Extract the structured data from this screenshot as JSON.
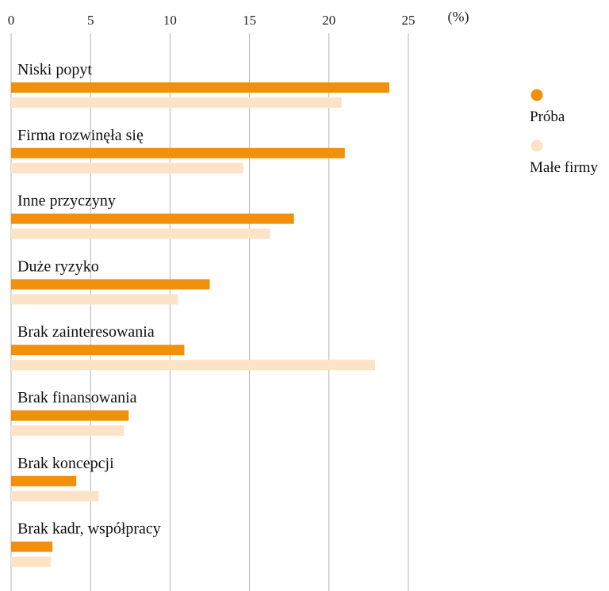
{
  "chart_data": {
    "type": "bar",
    "orientation": "horizontal",
    "unit_label": "(%)",
    "xlim": [
      0,
      25
    ],
    "x_ticks": [
      "0",
      "5",
      "10",
      "15",
      "20",
      "25"
    ],
    "grid": "vertical",
    "legend_position": "right",
    "categories": [
      "Niski popyt",
      "Firma rozwinęła się",
      "Inne przyczyny",
      "Duże ryzyko",
      "Brak zainteresowania",
      "Brak finansowania",
      "Brak koncepcji",
      "Brak kadr, współpracy"
    ],
    "series": [
      {
        "name": "Próba",
        "color": "#f0900c",
        "values": [
          23.8,
          21.0,
          17.8,
          12.5,
          10.9,
          7.4,
          4.1,
          2.6
        ]
      },
      {
        "name": "Małe firmy",
        "color": "#fde3c6",
        "values": [
          20.8,
          14.6,
          16.3,
          10.5,
          22.9,
          7.1,
          5.5,
          2.5
        ]
      }
    ]
  }
}
